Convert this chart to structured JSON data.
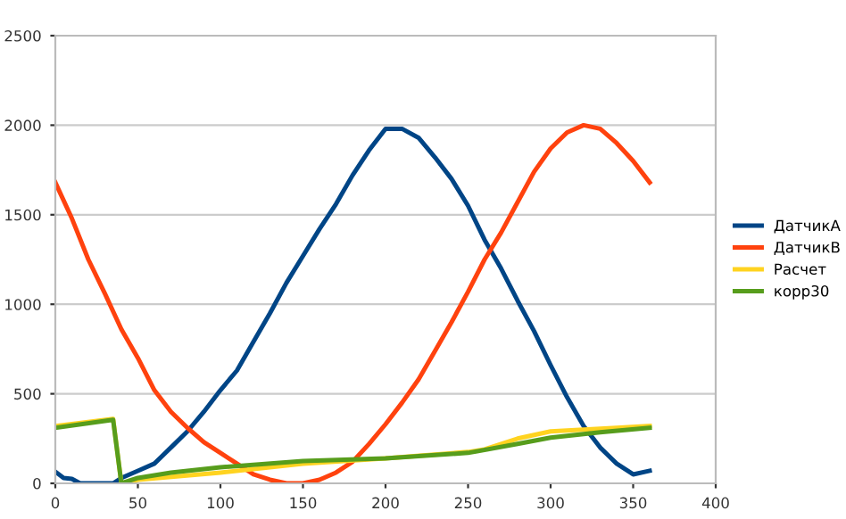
{
  "chart_data": {
    "type": "line",
    "xlim": [
      0,
      400
    ],
    "ylim": [
      0,
      2500
    ],
    "xticks": [
      0,
      50,
      100,
      150,
      200,
      250,
      300,
      350,
      400
    ],
    "yticks": [
      0,
      500,
      1000,
      1500,
      2000,
      2500
    ],
    "grid": "y",
    "legend": "right",
    "marker": "none",
    "line_style": "solid",
    "series": [
      {
        "name": "ДатчикA",
        "color": "#004586",
        "x": [
          0,
          5,
          10,
          15,
          20,
          35,
          40,
          50,
          60,
          70,
          80,
          90,
          100,
          110,
          120,
          130,
          140,
          150,
          160,
          170,
          180,
          190,
          200,
          210,
          220,
          230,
          240,
          250,
          260,
          270,
          280,
          290,
          300,
          310,
          320,
          330,
          340,
          350,
          360
        ],
        "values": [
          65,
          30,
          25,
          0,
          0,
          0,
          30,
          70,
          110,
          200,
          290,
          400,
          520,
          630,
          790,
          950,
          1120,
          1270,
          1420,
          1560,
          1720,
          1860,
          1980,
          1980,
          1930,
          1820,
          1700,
          1550,
          1360,
          1200,
          1020,
          850,
          660,
          480,
          320,
          200,
          110,
          50,
          70
        ]
      },
      {
        "name": "ДатчикB",
        "color": "#ff420e",
        "x": [
          0,
          10,
          20,
          30,
          40,
          50,
          60,
          70,
          80,
          90,
          100,
          110,
          120,
          130,
          140,
          150,
          160,
          170,
          180,
          190,
          200,
          210,
          220,
          230,
          240,
          250,
          260,
          270,
          280,
          290,
          300,
          310,
          320,
          330,
          340,
          350,
          360
        ],
        "values": [
          1680,
          1480,
          1250,
          1060,
          860,
          700,
          520,
          400,
          310,
          230,
          170,
          110,
          50,
          20,
          0,
          0,
          20,
          60,
          120,
          220,
          330,
          450,
          580,
          740,
          900,
          1070,
          1250,
          1400,
          1570,
          1740,
          1870,
          1960,
          2000,
          1980,
          1900,
          1800,
          1680
        ]
      },
      {
        "name": "Расчет",
        "color": "#ffd320",
        "x": [
          0,
          35,
          40,
          50,
          100,
          150,
          200,
          250,
          260,
          280,
          300,
          320,
          340,
          360
        ],
        "values": [
          320,
          360,
          0,
          20,
          60,
          110,
          140,
          175,
          190,
          250,
          290,
          300,
          310,
          320
        ]
      },
      {
        "name": "корр30",
        "color": "#579d1c",
        "x": [
          0,
          35,
          40,
          50,
          70,
          100,
          150,
          200,
          250,
          280,
          300,
          330,
          360
        ],
        "values": [
          310,
          355,
          0,
          30,
          60,
          90,
          125,
          140,
          170,
          220,
          255,
          285,
          310
        ]
      }
    ]
  }
}
